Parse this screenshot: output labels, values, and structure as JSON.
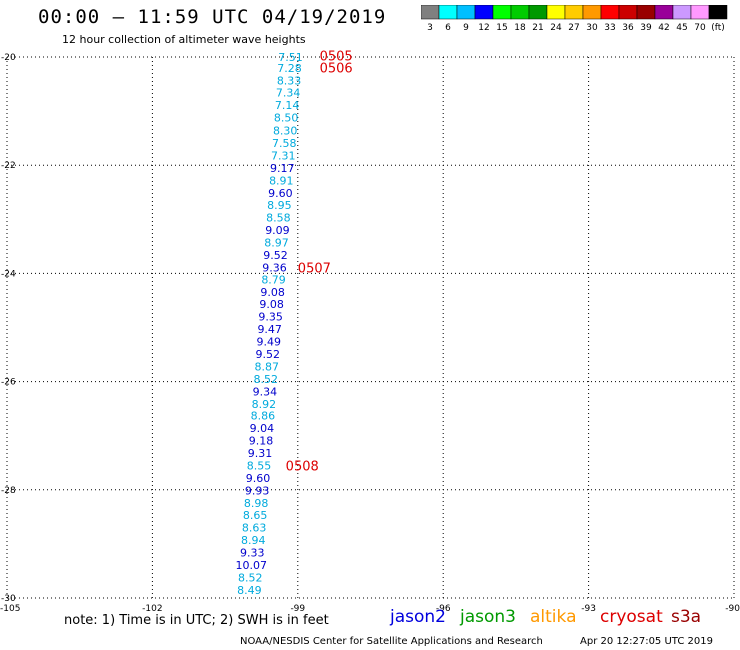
{
  "title": "00:00 – 11:59 UTC 04/19/2019",
  "subtitle": "12 hour collection of altimeter wave heights",
  "colorbar": {
    "colors": [
      "#808080",
      "#00ffff",
      "#00bfff",
      "#0000ff",
      "#00ff00",
      "#00cc00",
      "#009900",
      "#ffff00",
      "#ffcc00",
      "#ff9900",
      "#ff0000",
      "#cc0000",
      "#990000",
      "#990099",
      "#cc99ff",
      "#ff99ff",
      "#000000"
    ],
    "labels": [
      "3",
      "6",
      "9",
      "12",
      "15",
      "18",
      "21",
      "24",
      "27",
      "30",
      "33",
      "36",
      "39",
      "42",
      "45",
      "70",
      "(ft)"
    ]
  },
  "note": "note:  1) Time is in UTC;  2) SWH is in feet",
  "satellites": [
    {
      "name": "jason2",
      "color": "#0000dd"
    },
    {
      "name": "jason3",
      "color": "#009900"
    },
    {
      "name": "altika",
      "color": "#ff9900"
    },
    {
      "name": "cryosat",
      "color": "#dd0000"
    },
    {
      "name": "s3a",
      "color": "#990000"
    }
  ],
  "credit": "NOAA/NESDIS Center for Satellite Applications and Research",
  "timestamp": "Apr 20 12:27:05 UTC 2019",
  "chart_data": {
    "type": "scatter",
    "xlim": [
      -105,
      -90
    ],
    "ylim": [
      -30,
      -20
    ],
    "xticks": [
      "-105",
      "-102",
      "-99",
      "-96",
      "-93",
      "-90"
    ],
    "yticks": [
      "-20",
      "-22",
      "-24",
      "-26",
      "-28",
      "-30"
    ],
    "grid": true,
    "points": [
      {
        "lon": -99.15,
        "lat": -20.0,
        "swh": "7.51",
        "color": "#00aadd"
      },
      {
        "lon": -99.17,
        "lat": -20.2,
        "swh": "7.28",
        "color": "#00aadd"
      },
      {
        "lon": -99.18,
        "lat": -20.43,
        "swh": "8.33",
        "color": "#00aadd"
      },
      {
        "lon": -99.2,
        "lat": -20.66,
        "swh": "7.34",
        "color": "#00aadd"
      },
      {
        "lon": -99.22,
        "lat": -20.89,
        "swh": "7.14",
        "color": "#00aadd"
      },
      {
        "lon": -99.24,
        "lat": -21.12,
        "swh": "8.50",
        "color": "#00aadd"
      },
      {
        "lon": -99.26,
        "lat": -21.36,
        "swh": "8.30",
        "color": "#00aadd"
      },
      {
        "lon": -99.28,
        "lat": -21.59,
        "swh": "7.58",
        "color": "#00aadd"
      },
      {
        "lon": -99.3,
        "lat": -21.82,
        "swh": "7.31",
        "color": "#00aadd"
      },
      {
        "lon": -99.32,
        "lat": -22.05,
        "swh": "9.17",
        "color": "#0000cc"
      },
      {
        "lon": -99.34,
        "lat": -22.28,
        "swh": "8.91",
        "color": "#00aadd"
      },
      {
        "lon": -99.36,
        "lat": -22.51,
        "swh": "9.60",
        "color": "#0000cc"
      },
      {
        "lon": -99.38,
        "lat": -22.74,
        "swh": "8.95",
        "color": "#00aadd"
      },
      {
        "lon": -99.4,
        "lat": -22.97,
        "swh": "8.58",
        "color": "#00aadd"
      },
      {
        "lon": -99.42,
        "lat": -23.2,
        "swh": "9.09",
        "color": "#0000cc"
      },
      {
        "lon": -99.44,
        "lat": -23.43,
        "swh": "8.97",
        "color": "#00aadd"
      },
      {
        "lon": -99.46,
        "lat": -23.66,
        "swh": "9.52",
        "color": "#0000cc"
      },
      {
        "lon": -99.48,
        "lat": -23.89,
        "swh": "9.36",
        "color": "#0000cc"
      },
      {
        "lon": -99.5,
        "lat": -24.11,
        "swh": "8.79",
        "color": "#00aadd"
      },
      {
        "lon": -99.52,
        "lat": -24.34,
        "swh": "9.08",
        "color": "#0000cc"
      },
      {
        "lon": -99.54,
        "lat": -24.57,
        "swh": "9.08",
        "color": "#0000cc"
      },
      {
        "lon": -99.56,
        "lat": -24.8,
        "swh": "9.35",
        "color": "#0000cc"
      },
      {
        "lon": -99.58,
        "lat": -25.03,
        "swh": "9.47",
        "color": "#0000cc"
      },
      {
        "lon": -99.6,
        "lat": -25.26,
        "swh": "9.49",
        "color": "#0000cc"
      },
      {
        "lon": -99.62,
        "lat": -25.49,
        "swh": "9.52",
        "color": "#0000cc"
      },
      {
        "lon": -99.64,
        "lat": -25.72,
        "swh": "8.87",
        "color": "#00aadd"
      },
      {
        "lon": -99.66,
        "lat": -25.95,
        "swh": "8.52",
        "color": "#00aadd"
      },
      {
        "lon": -99.68,
        "lat": -26.18,
        "swh": "9.34",
        "color": "#0000cc"
      },
      {
        "lon": -99.7,
        "lat": -26.41,
        "swh": "8.92",
        "color": "#00aadd"
      },
      {
        "lon": -99.72,
        "lat": -26.63,
        "swh": "8.86",
        "color": "#00aadd"
      },
      {
        "lon": -99.74,
        "lat": -26.86,
        "swh": "9.04",
        "color": "#0000cc"
      },
      {
        "lon": -99.76,
        "lat": -27.09,
        "swh": "9.18",
        "color": "#0000cc"
      },
      {
        "lon": -99.78,
        "lat": -27.32,
        "swh": "9.31",
        "color": "#0000cc"
      },
      {
        "lon": -99.8,
        "lat": -27.55,
        "swh": "8.55",
        "color": "#00aadd"
      },
      {
        "lon": -99.82,
        "lat": -27.78,
        "swh": "9.60",
        "color": "#0000cc"
      },
      {
        "lon": -99.84,
        "lat": -28.01,
        "swh": "9.93",
        "color": "#0000cc"
      },
      {
        "lon": -99.86,
        "lat": -28.24,
        "swh": "8.98",
        "color": "#00aadd"
      },
      {
        "lon": -99.88,
        "lat": -28.47,
        "swh": "8.65",
        "color": "#00aadd"
      },
      {
        "lon": -99.9,
        "lat": -28.7,
        "swh": "8.63",
        "color": "#00aadd"
      },
      {
        "lon": -99.92,
        "lat": -28.93,
        "swh": "8.94",
        "color": "#00aadd"
      },
      {
        "lon": -99.94,
        "lat": -29.16,
        "swh": "9.33",
        "color": "#0000cc"
      },
      {
        "lon": -99.96,
        "lat": -29.39,
        "swh": "10.07",
        "color": "#0000cc"
      },
      {
        "lon": -99.98,
        "lat": -29.62,
        "swh": "8.52",
        "color": "#00aadd"
      },
      {
        "lon": -100.0,
        "lat": -29.85,
        "swh": "8.49",
        "color": "#00aadd"
      }
    ],
    "time_labels": [
      {
        "text": "0505",
        "lon": -98.55,
        "lat": -19.97
      },
      {
        "text": "0506",
        "lon": -98.55,
        "lat": -20.19
      },
      {
        "text": "0507",
        "lon": -99.0,
        "lat": -23.89
      },
      {
        "text": "0508",
        "lon": -99.25,
        "lat": -27.55
      }
    ]
  }
}
